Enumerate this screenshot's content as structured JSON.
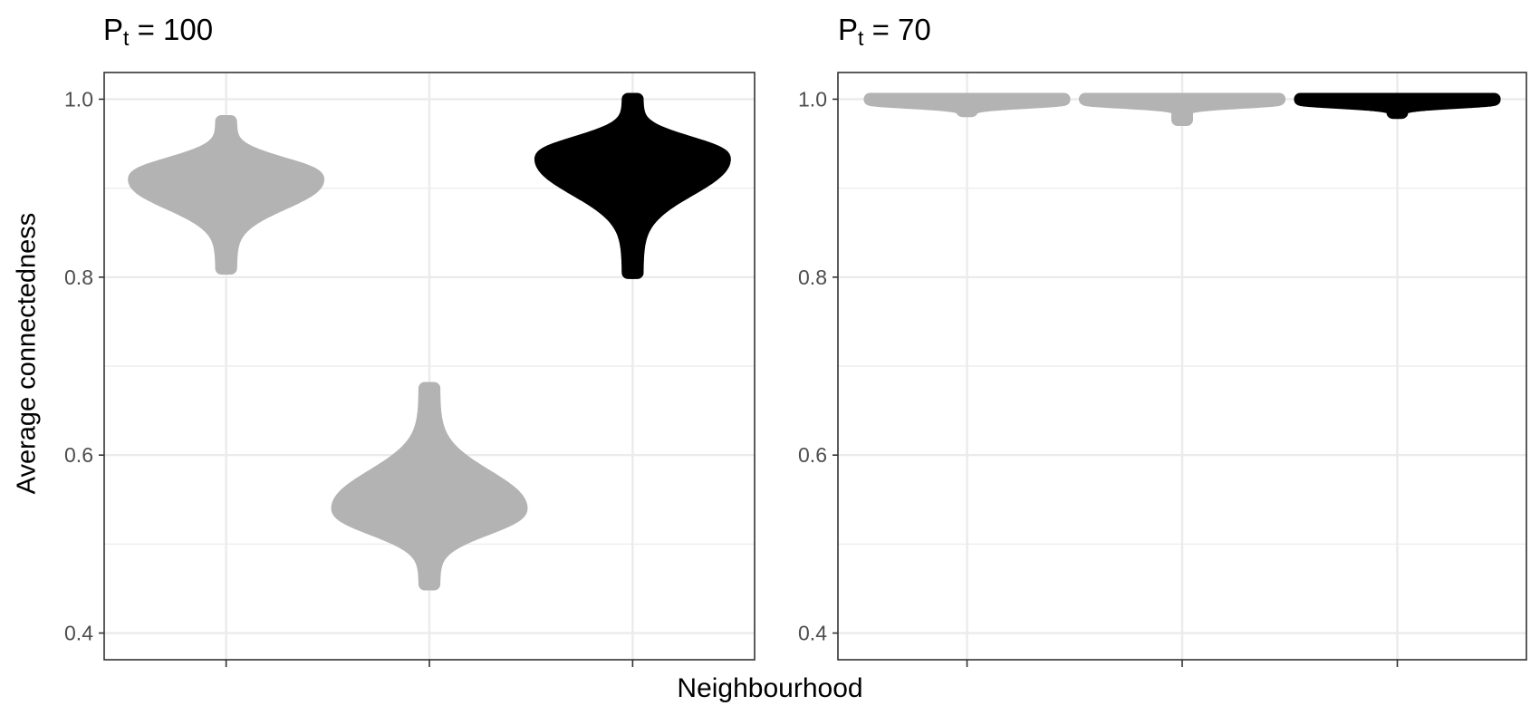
{
  "chart_data": [
    {
      "type": "violin",
      "panel_title": {
        "main": "P",
        "sub": "t",
        "rest": " = 100"
      },
      "xlabel": "Neighbourhood",
      "ylabel": "Average connectedness",
      "ylim": [
        0.37,
        1.03
      ],
      "yticks": [
        "0.4",
        "0.6",
        "0.8",
        "1.0"
      ],
      "grid": true,
      "series": [
        {
          "position": 1,
          "color": "#b3b3b3",
          "min": 0.81,
          "max": 0.975,
          "mode": 0.91,
          "max_half_width": 0.43
        },
        {
          "position": 2,
          "color": "#b3b3b3",
          "min": 0.455,
          "max": 0.675,
          "mode": 0.54,
          "max_half_width": 0.43
        },
        {
          "position": 3,
          "color": "#000000",
          "min": 0.805,
          "max": 1.0,
          "mode": 0.933,
          "max_half_width": 0.43
        }
      ]
    },
    {
      "type": "violin",
      "panel_title": {
        "main": "P",
        "sub": "t",
        "rest": " = 70"
      },
      "xlabel": "Neighbourhood",
      "ylabel": "Average connectedness",
      "ylim": [
        0.37,
        1.03
      ],
      "yticks": [
        "0.4",
        "0.6",
        "0.8",
        "1.0"
      ],
      "grid": true,
      "series": [
        {
          "position": 1,
          "color": "#b3b3b3",
          "min": 0.987,
          "max": 1.0,
          "mode": 1.0,
          "max_half_width": 0.43
        },
        {
          "position": 2,
          "color": "#b3b3b3",
          "min": 0.977,
          "max": 1.0,
          "mode": 1.0,
          "max_half_width": 0.43
        },
        {
          "position": 3,
          "color": "#000000",
          "min": 0.985,
          "max": 1.0,
          "mode": 1.0,
          "max_half_width": 0.43
        }
      ]
    }
  ],
  "colors": {
    "grey": "#b3b3b3",
    "black": "#000000",
    "grid": "#ebebeb",
    "axis_text": "#4d4d4d"
  }
}
